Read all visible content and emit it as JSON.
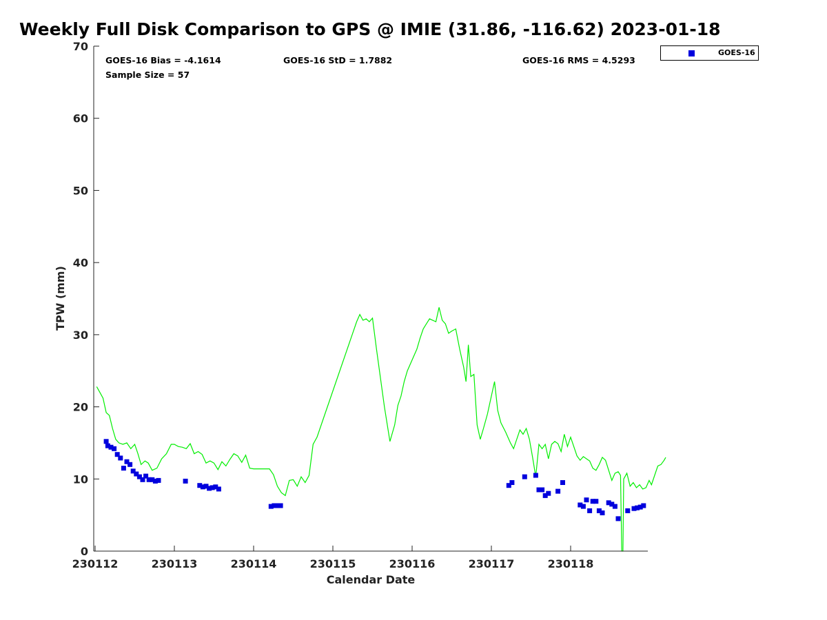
{
  "chart_data": {
    "type": "scatter",
    "title": "Weekly Full Disk Comparison to GPS @ IMIE (31.86, -116.62) 2023-01-18",
    "xlabel": "Calendar Date",
    "ylabel": "TPW (mm)",
    "ylim": [
      0,
      70
    ],
    "xlim": [
      0,
      7
    ],
    "yticks": [
      0,
      10,
      20,
      30,
      40,
      50,
      60,
      70
    ],
    "xticks": [
      0,
      1,
      2,
      3,
      4,
      5,
      6
    ],
    "xtick_labels": [
      "230112",
      "230113",
      "230114",
      "230115",
      "230116",
      "230117",
      "230118"
    ],
    "stats": {
      "bias": "GOES-16 Bias = -4.1614",
      "std": "GOES-16 StD = 1.7882",
      "rms": "GOES-16 RMS = 4.5293",
      "sample": "Sample Size = 57"
    },
    "legend": [
      {
        "name": "GOES-16",
        "color": "#0000dd"
      }
    ],
    "series": [
      {
        "name": "GPS",
        "style": "line",
        "color": "#00ee00",
        "points": [
          [
            0.02,
            22.8
          ],
          [
            0.06,
            22.0
          ],
          [
            0.1,
            21.2
          ],
          [
            0.14,
            19.2
          ],
          [
            0.18,
            18.8
          ],
          [
            0.22,
            17.0
          ],
          [
            0.26,
            15.5
          ],
          [
            0.3,
            15.0
          ],
          [
            0.35,
            14.8
          ],
          [
            0.4,
            15.0
          ],
          [
            0.45,
            14.2
          ],
          [
            0.5,
            14.8
          ],
          [
            0.54,
            13.5
          ],
          [
            0.58,
            12.0
          ],
          [
            0.63,
            12.5
          ],
          [
            0.67,
            12.2
          ],
          [
            0.72,
            11.2
          ],
          [
            0.78,
            11.5
          ],
          [
            0.84,
            12.8
          ],
          [
            0.9,
            13.5
          ],
          [
            0.96,
            14.8
          ],
          [
            1.0,
            14.8
          ],
          [
            1.05,
            14.5
          ],
          [
            1.1,
            14.4
          ],
          [
            1.15,
            14.2
          ],
          [
            1.2,
            14.9
          ],
          [
            1.25,
            13.5
          ],
          [
            1.3,
            13.8
          ],
          [
            1.35,
            13.4
          ],
          [
            1.4,
            12.2
          ],
          [
            1.45,
            12.5
          ],
          [
            1.5,
            12.2
          ],
          [
            1.55,
            11.3
          ],
          [
            1.6,
            12.4
          ],
          [
            1.65,
            11.8
          ],
          [
            1.7,
            12.7
          ],
          [
            1.75,
            13.5
          ],
          [
            1.8,
            13.2
          ],
          [
            1.85,
            12.3
          ],
          [
            1.9,
            13.3
          ],
          [
            1.95,
            11.5
          ],
          [
            2.0,
            11.4
          ],
          [
            2.1,
            11.4
          ],
          [
            2.2,
            11.4
          ],
          [
            2.25,
            10.6
          ],
          [
            2.3,
            9.0
          ],
          [
            2.35,
            8.1
          ],
          [
            2.4,
            7.7
          ],
          [
            2.45,
            9.8
          ],
          [
            2.5,
            9.9
          ],
          [
            2.55,
            9.0
          ],
          [
            2.6,
            10.3
          ],
          [
            2.65,
            9.5
          ],
          [
            2.7,
            10.5
          ],
          [
            2.75,
            14.8
          ],
          [
            2.8,
            15.8
          ],
          [
            2.9,
            19.0
          ],
          [
            3.0,
            22.2
          ],
          [
            3.1,
            25.4
          ],
          [
            3.2,
            28.6
          ],
          [
            3.3,
            31.8
          ],
          [
            3.34,
            32.8
          ],
          [
            3.38,
            32.0
          ],
          [
            3.42,
            32.2
          ],
          [
            3.46,
            31.8
          ],
          [
            3.5,
            32.3
          ],
          [
            3.55,
            28.0
          ],
          [
            3.65,
            20.0
          ],
          [
            3.72,
            15.2
          ],
          [
            3.78,
            17.5
          ],
          [
            3.82,
            20.2
          ],
          [
            3.86,
            21.5
          ],
          [
            3.9,
            23.5
          ],
          [
            3.94,
            25.0
          ],
          [
            3.98,
            26.0
          ],
          [
            4.02,
            27.0
          ],
          [
            4.06,
            28.0
          ],
          [
            4.1,
            29.5
          ],
          [
            4.14,
            30.8
          ],
          [
            4.18,
            31.5
          ],
          [
            4.22,
            32.2
          ],
          [
            4.26,
            32.0
          ],
          [
            4.3,
            31.8
          ],
          [
            4.34,
            33.8
          ],
          [
            4.38,
            32.0
          ],
          [
            4.42,
            31.5
          ],
          [
            4.46,
            30.2
          ],
          [
            4.5,
            30.5
          ],
          [
            4.55,
            30.8
          ],
          [
            4.6,
            28.0
          ],
          [
            4.65,
            25.5
          ],
          [
            4.68,
            23.5
          ],
          [
            4.71,
            28.6
          ],
          [
            4.74,
            24.2
          ],
          [
            4.78,
            24.5
          ],
          [
            4.82,
            17.5
          ],
          [
            4.86,
            15.5
          ],
          [
            4.9,
            17.0
          ],
          [
            4.95,
            19.0
          ],
          [
            5.0,
            21.5
          ],
          [
            5.04,
            23.5
          ],
          [
            5.08,
            19.5
          ],
          [
            5.12,
            17.8
          ],
          [
            5.18,
            16.5
          ],
          [
            5.24,
            15.0
          ],
          [
            5.28,
            14.2
          ],
          [
            5.32,
            15.5
          ],
          [
            5.36,
            16.8
          ],
          [
            5.4,
            16.2
          ],
          [
            5.44,
            17.0
          ],
          [
            5.48,
            15.5
          ],
          [
            5.52,
            13.0
          ],
          [
            5.56,
            10.3
          ],
          [
            5.6,
            14.8
          ],
          [
            5.64,
            14.2
          ],
          [
            5.68,
            14.8
          ],
          [
            5.72,
            12.8
          ],
          [
            5.76,
            14.8
          ],
          [
            5.8,
            15.2
          ],
          [
            5.84,
            14.9
          ],
          [
            5.88,
            13.8
          ],
          [
            5.92,
            16.2
          ],
          [
            5.96,
            14.5
          ],
          [
            6.0,
            15.8
          ],
          [
            6.04,
            14.5
          ],
          [
            6.08,
            13.2
          ],
          [
            6.12,
            12.6
          ],
          [
            6.16,
            13.1
          ],
          [
            6.2,
            12.8
          ],
          [
            6.24,
            12.5
          ],
          [
            6.28,
            11.5
          ],
          [
            6.32,
            11.2
          ],
          [
            6.36,
            12.0
          ],
          [
            6.4,
            13.0
          ],
          [
            6.44,
            12.6
          ],
          [
            6.48,
            11.2
          ],
          [
            6.52,
            9.8
          ],
          [
            6.56,
            10.8
          ],
          [
            6.6,
            11.0
          ],
          [
            6.63,
            10.5
          ],
          [
            6.645,
            0.0
          ],
          [
            6.66,
            0.0
          ],
          [
            6.67,
            10.0
          ],
          [
            6.71,
            10.8
          ],
          [
            6.75,
            9.0
          ],
          [
            6.79,
            9.5
          ],
          [
            6.83,
            8.8
          ],
          [
            6.87,
            9.2
          ],
          [
            6.91,
            8.6
          ],
          [
            6.95,
            8.8
          ],
          [
            6.99,
            9.8
          ],
          [
            7.02,
            9.2
          ],
          [
            7.06,
            10.5
          ],
          [
            7.1,
            11.8
          ],
          [
            7.14,
            12.0
          ],
          [
            7.18,
            12.6
          ],
          [
            7.2,
            13.0
          ]
        ]
      },
      {
        "name": "GOES-16",
        "style": "markers",
        "color": "#0000dd",
        "points": [
          [
            0.14,
            15.2
          ],
          [
            0.16,
            14.6
          ],
          [
            0.2,
            14.4
          ],
          [
            0.24,
            14.2
          ],
          [
            0.28,
            13.4
          ],
          [
            0.32,
            12.9
          ],
          [
            0.36,
            11.5
          ],
          [
            0.4,
            12.4
          ],
          [
            0.44,
            12.0
          ],
          [
            0.48,
            11.1
          ],
          [
            0.52,
            10.7
          ],
          [
            0.56,
            10.3
          ],
          [
            0.6,
            9.9
          ],
          [
            0.64,
            10.4
          ],
          [
            0.68,
            9.9
          ],
          [
            0.72,
            9.9
          ],
          [
            0.76,
            9.7
          ],
          [
            0.8,
            9.8
          ],
          [
            1.14,
            9.7
          ],
          [
            1.32,
            9.1
          ],
          [
            1.36,
            8.9
          ],
          [
            1.4,
            9.0
          ],
          [
            1.44,
            8.7
          ],
          [
            1.48,
            8.8
          ],
          [
            1.52,
            8.9
          ],
          [
            1.56,
            8.6
          ],
          [
            2.22,
            6.2
          ],
          [
            2.26,
            6.3
          ],
          [
            2.3,
            6.3
          ],
          [
            2.34,
            6.3
          ],
          [
            5.22,
            9.1
          ],
          [
            5.26,
            9.5
          ],
          [
            5.42,
            10.3
          ],
          [
            5.56,
            10.5
          ],
          [
            5.6,
            8.5
          ],
          [
            5.64,
            8.5
          ],
          [
            5.68,
            7.7
          ],
          [
            5.72,
            8.0
          ],
          [
            5.84,
            8.3
          ],
          [
            5.9,
            9.5
          ],
          [
            6.12,
            6.4
          ],
          [
            6.16,
            6.2
          ],
          [
            6.2,
            7.1
          ],
          [
            6.24,
            5.6
          ],
          [
            6.28,
            6.9
          ],
          [
            6.32,
            6.9
          ],
          [
            6.36,
            5.6
          ],
          [
            6.4,
            5.3
          ],
          [
            6.48,
            6.7
          ],
          [
            6.52,
            6.5
          ],
          [
            6.56,
            6.2
          ],
          [
            6.6,
            4.5
          ],
          [
            6.72,
            5.6
          ],
          [
            6.8,
            5.9
          ],
          [
            6.84,
            6.0
          ],
          [
            6.88,
            6.1
          ],
          [
            6.92,
            6.3
          ]
        ]
      }
    ]
  }
}
